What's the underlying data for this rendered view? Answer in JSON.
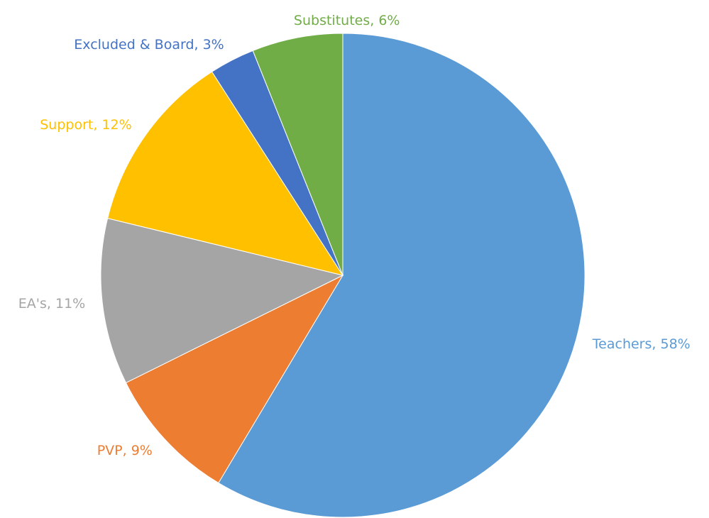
{
  "chart_data": {
    "type": "pie",
    "values": [
      58,
      9,
      11,
      12,
      3,
      6
    ],
    "value_labels": [
      "Teachers, 58%",
      "PVP, 9%",
      "EA's, 11%",
      "Support, 12%",
      "Excluded & Board, 3%",
      "Substitutes, 6%"
    ],
    "colors": [
      "#5b9bd5",
      "#ed7d31",
      "#a5a5a5",
      "#ffc000",
      "#4472c4",
      "#70ad47"
    ]
  }
}
